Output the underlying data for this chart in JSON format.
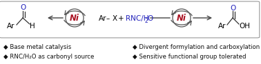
{
  "bg_color": "#ffffff",
  "border_color": "#999999",
  "ni_color": "#aa1122",
  "ni_text": "Ni",
  "ar_color": "#000000",
  "blue_color": "#2222bb",
  "bullet_color": "#111111",
  "bullet1_left": "◆ Base metal catalysis",
  "bullet2_left": "◆ RNC/H₂O as carbonyl source",
  "bullet1_right": "◆ Divergent formylation and carboxylation",
  "bullet2_right": "◆ Sensitive functional group tolerated",
  "text_fontsize": 6.2,
  "ni_fontsize": 8.5,
  "chem_fontsize": 7.5,
  "sub_fontsize": 5.5,
  "figw": 3.78,
  "figh": 0.93,
  "dpi": 100
}
